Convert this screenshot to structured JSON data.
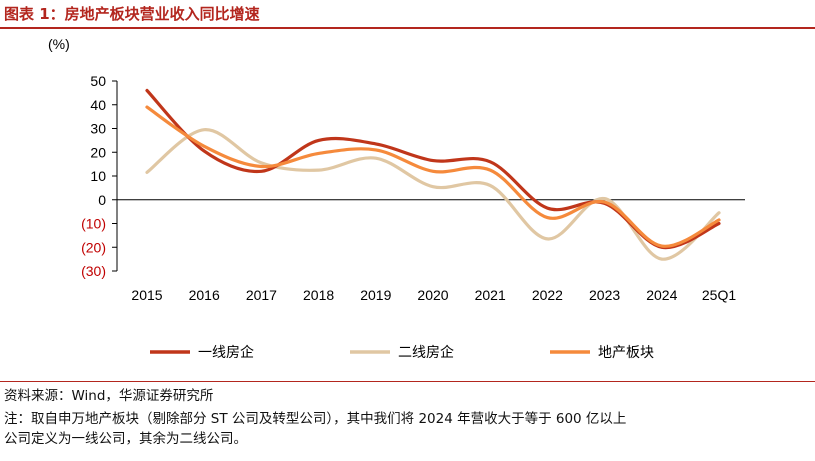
{
  "header": {
    "figure_title": "图表 1：房地产板块营业收入同比增速"
  },
  "footer": {
    "source": "资料来源：Wind，华源证券研究所",
    "note_line1": "注：取自申万地产板块（剔除部分 ST 公司及转型公司），其中我们将 2024 年营收大于等于 600 亿以上",
    "note_line2": "公司定义为一线公司，其余为二线公司。"
  },
  "chart_data": {
    "type": "line",
    "title": "",
    "unit_label": "(%)",
    "categories": [
      "2015",
      "2016",
      "2017",
      "2018",
      "2019",
      "2020",
      "2021",
      "2022",
      "2023",
      "2024",
      "25Q1"
    ],
    "ylim": [
      -30,
      50
    ],
    "yticks": [
      {
        "value": 50,
        "label": "50"
      },
      {
        "value": 40,
        "label": "40"
      },
      {
        "value": 30,
        "label": "30"
      },
      {
        "value": 20,
        "label": "20"
      },
      {
        "value": 10,
        "label": "10"
      },
      {
        "value": 0,
        "label": "0"
      },
      {
        "value": -10,
        "label": "(10)"
      },
      {
        "value": -20,
        "label": "(20)"
      },
      {
        "value": -30,
        "label": "(30)"
      }
    ],
    "negative_tick_color": "#c00000",
    "grid": false,
    "legend_position": "bottom",
    "series": [
      {
        "name": "一线房企",
        "color": "#c0361a",
        "width": 3.2,
        "values": [
          46,
          20.5,
          12,
          25,
          23.5,
          16.5,
          16,
          -3.5,
          -1.5,
          -20,
          -10
        ]
      },
      {
        "name": "二线房企",
        "color": "#e0c7a3",
        "width": 3.2,
        "values": [
          11.5,
          29.5,
          15.5,
          12.5,
          17.5,
          5.5,
          6,
          -16.5,
          0.5,
          -25,
          -5.5
        ]
      },
      {
        "name": "地产板块",
        "color": "#f58a3c",
        "width": 3.2,
        "values": [
          39,
          22.5,
          14,
          19.5,
          21,
          12,
          12.5,
          -7.5,
          -1,
          -19.5,
          -8.5
        ]
      }
    ]
  }
}
